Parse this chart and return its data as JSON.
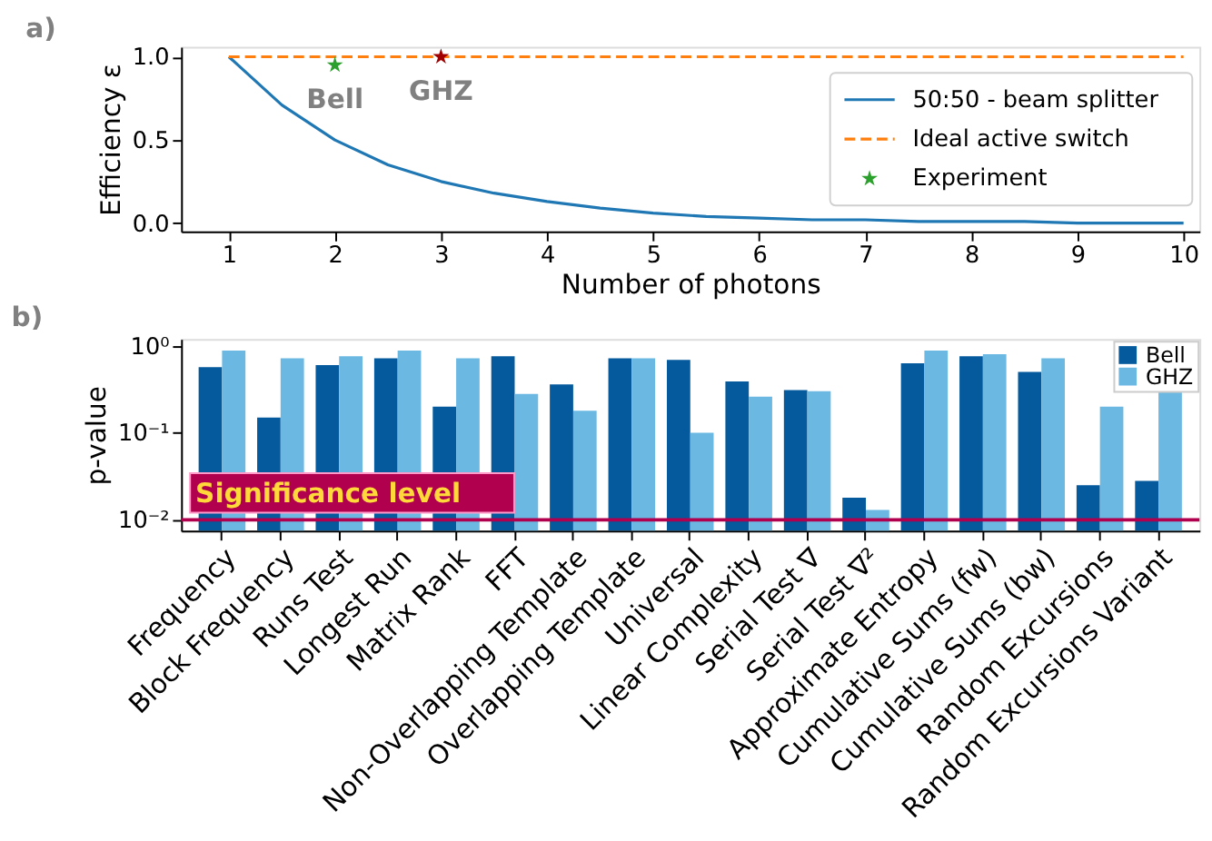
{
  "chart_data": [
    {
      "type": "line",
      "title": "a)",
      "xlabel": "Number of photons",
      "ylabel": "Efficiency ε",
      "xlim": [
        0.55,
        10.15
      ],
      "xticks": [
        1,
        2,
        3,
        4,
        5,
        6,
        7,
        8,
        9,
        10
      ],
      "ylim": [
        -0.05,
        1.06
      ],
      "yticks": [
        {
          "value": 0,
          "label": "0.0"
        },
        {
          "value": 0.5,
          "label": "0.5"
        },
        {
          "value": 1.0,
          "label": "1.0"
        }
      ],
      "legend": "right",
      "grid": false,
      "series": [
        {
          "name": "50:50 - beam splitter",
          "type": "line",
          "line_style": "solid",
          "color": "#1f77b4",
          "x": [
            1,
            1.5,
            2,
            2.5,
            3,
            3.5,
            4,
            4.5,
            5,
            5.5,
            6,
            6.5,
            7,
            7.5,
            8,
            8.5,
            9,
            9.5,
            10
          ],
          "values": [
            1,
            0.71,
            0.5,
            0.35,
            0.25,
            0.18,
            0.13,
            0.09,
            0.06,
            0.04,
            0.03,
            0.02,
            0.02,
            0.01,
            0.01,
            0.01,
            0,
            0,
            0
          ]
        },
        {
          "name": "Ideal active switch",
          "type": "line",
          "line_style": "dashed",
          "color": "#ff7f0e",
          "x": [
            1,
            10
          ],
          "values": [
            1,
            1
          ]
        },
        {
          "name": "Experiment",
          "type": "scatter",
          "marker": "star",
          "color": "#2ca02c",
          "colors": [
            "#2ca02c",
            "#a00000"
          ],
          "x": [
            2,
            3
          ],
          "values": [
            0.95,
            1.0
          ]
        }
      ],
      "annotations": [
        {
          "text": "Bell",
          "x": 2,
          "y": 0.95
        },
        {
          "text": "GHZ",
          "x": 3,
          "y": 1.0
        }
      ]
    },
    {
      "type": "bar",
      "title": "b)",
      "ylabel": "p-value",
      "log": true,
      "ylim": [
        0.0075,
        1.2
      ],
      "yticks": [
        {
          "value": 0.01,
          "label": "10⁻²"
        },
        {
          "value": 0.1,
          "label": "10⁻¹"
        },
        {
          "value": 1,
          "label": "10⁰"
        }
      ],
      "legend": "top right",
      "grid": false,
      "categories": [
        "Frequency",
        "Block Frequency",
        "Runs Test",
        "Longest Run",
        "Matrix Rank",
        "FFT",
        "Non-Overlapping Template",
        "Overlapping Template",
        "Universal",
        "Linear Complexity",
        "Serial Test ∇",
        "Serial Test ∇²",
        "Approximate Entropy",
        "Cumulative Sums (fw)",
        "Cumulative Sums (bw)",
        "Random Excursions",
        "Random Excursions Variant"
      ],
      "series": [
        {
          "name": "Bell",
          "color": "#045a9c",
          "values": [
            0.57,
            0.15,
            0.6,
            0.72,
            0.2,
            0.76,
            0.36,
            0.72,
            0.69,
            0.39,
            0.31,
            0.018,
            0.63,
            0.76,
            0.5,
            0.025,
            0.028
          ]
        },
        {
          "name": "GHZ",
          "color": "#6bb9e3",
          "values": [
            0.88,
            0.72,
            0.76,
            0.88,
            0.72,
            0.28,
            0.18,
            0.72,
            0.1,
            0.26,
            0.3,
            0.013,
            0.88,
            0.8,
            0.72,
            0.2,
            0.32
          ]
        }
      ],
      "ref_lines": [
        {
          "axis": "y",
          "value": 0.01,
          "label": "Significance level",
          "color": "#b0004e"
        }
      ]
    }
  ]
}
